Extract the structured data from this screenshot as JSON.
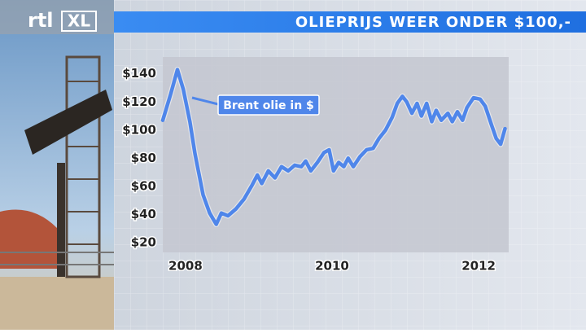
{
  "logo": {
    "text": "rtl",
    "badge": "XL"
  },
  "chart_data": {
    "type": "line",
    "title": "OLIEPRIJS WEER ONDER $100,-",
    "annotation": "Brent olie in $",
    "series": [
      {
        "name": "Brent olie in $",
        "color": "#4f86ea",
        "x": [
          2007.69,
          2007.8,
          2007.89,
          2007.97,
          2008.06,
          2008.13,
          2008.24,
          2008.33,
          2008.42,
          2008.49,
          2008.58,
          2008.69,
          2008.8,
          2008.91,
          2008.98,
          2009.04,
          2009.13,
          2009.22,
          2009.31,
          2009.4,
          2009.49,
          2009.58,
          2009.64,
          2009.71,
          2009.8,
          2009.89,
          2009.96,
          2010.02,
          2010.09,
          2010.16,
          2010.22,
          2010.29,
          2010.38,
          2010.47,
          2010.56,
          2010.64,
          2010.73,
          2010.82,
          2010.89,
          2010.96,
          2011.02,
          2011.09,
          2011.16,
          2011.22,
          2011.29,
          2011.36,
          2011.42,
          2011.49,
          2011.58,
          2011.64,
          2011.71,
          2011.78,
          2011.84,
          2011.93,
          2012.02,
          2012.09,
          2012.18,
          2012.24,
          2012.3,
          2012.36
        ],
        "values": [
          107,
          126,
          143,
          129,
          106,
          83,
          54,
          41,
          33,
          41,
          39,
          44,
          51,
          61,
          68,
          62,
          71,
          66,
          74,
          71,
          75,
          74,
          78,
          71,
          77,
          84,
          86,
          71,
          77,
          74,
          80,
          74,
          81,
          86,
          87,
          94,
          100,
          109,
          119,
          124,
          120,
          112,
          119,
          110,
          119,
          106,
          114,
          107,
          112,
          106,
          113,
          107,
          116,
          123,
          122,
          117,
          103,
          94,
          90,
          101
        ]
      }
    ],
    "xlim": [
      2007.69,
      2012.41
    ],
    "xticks": [
      2008,
      2010,
      2012
    ],
    "ylim": [
      13,
      152
    ],
    "yticks": [
      {
        "value": 20,
        "label": "$20"
      },
      {
        "value": 40,
        "label": "$40"
      },
      {
        "value": 60,
        "label": "$60"
      },
      {
        "value": 80,
        "label": "$80"
      },
      {
        "value": 100,
        "label": "$100"
      },
      {
        "value": 120,
        "label": "$120"
      },
      {
        "value": 140,
        "label": "$140"
      }
    ],
    "grid": false
  }
}
